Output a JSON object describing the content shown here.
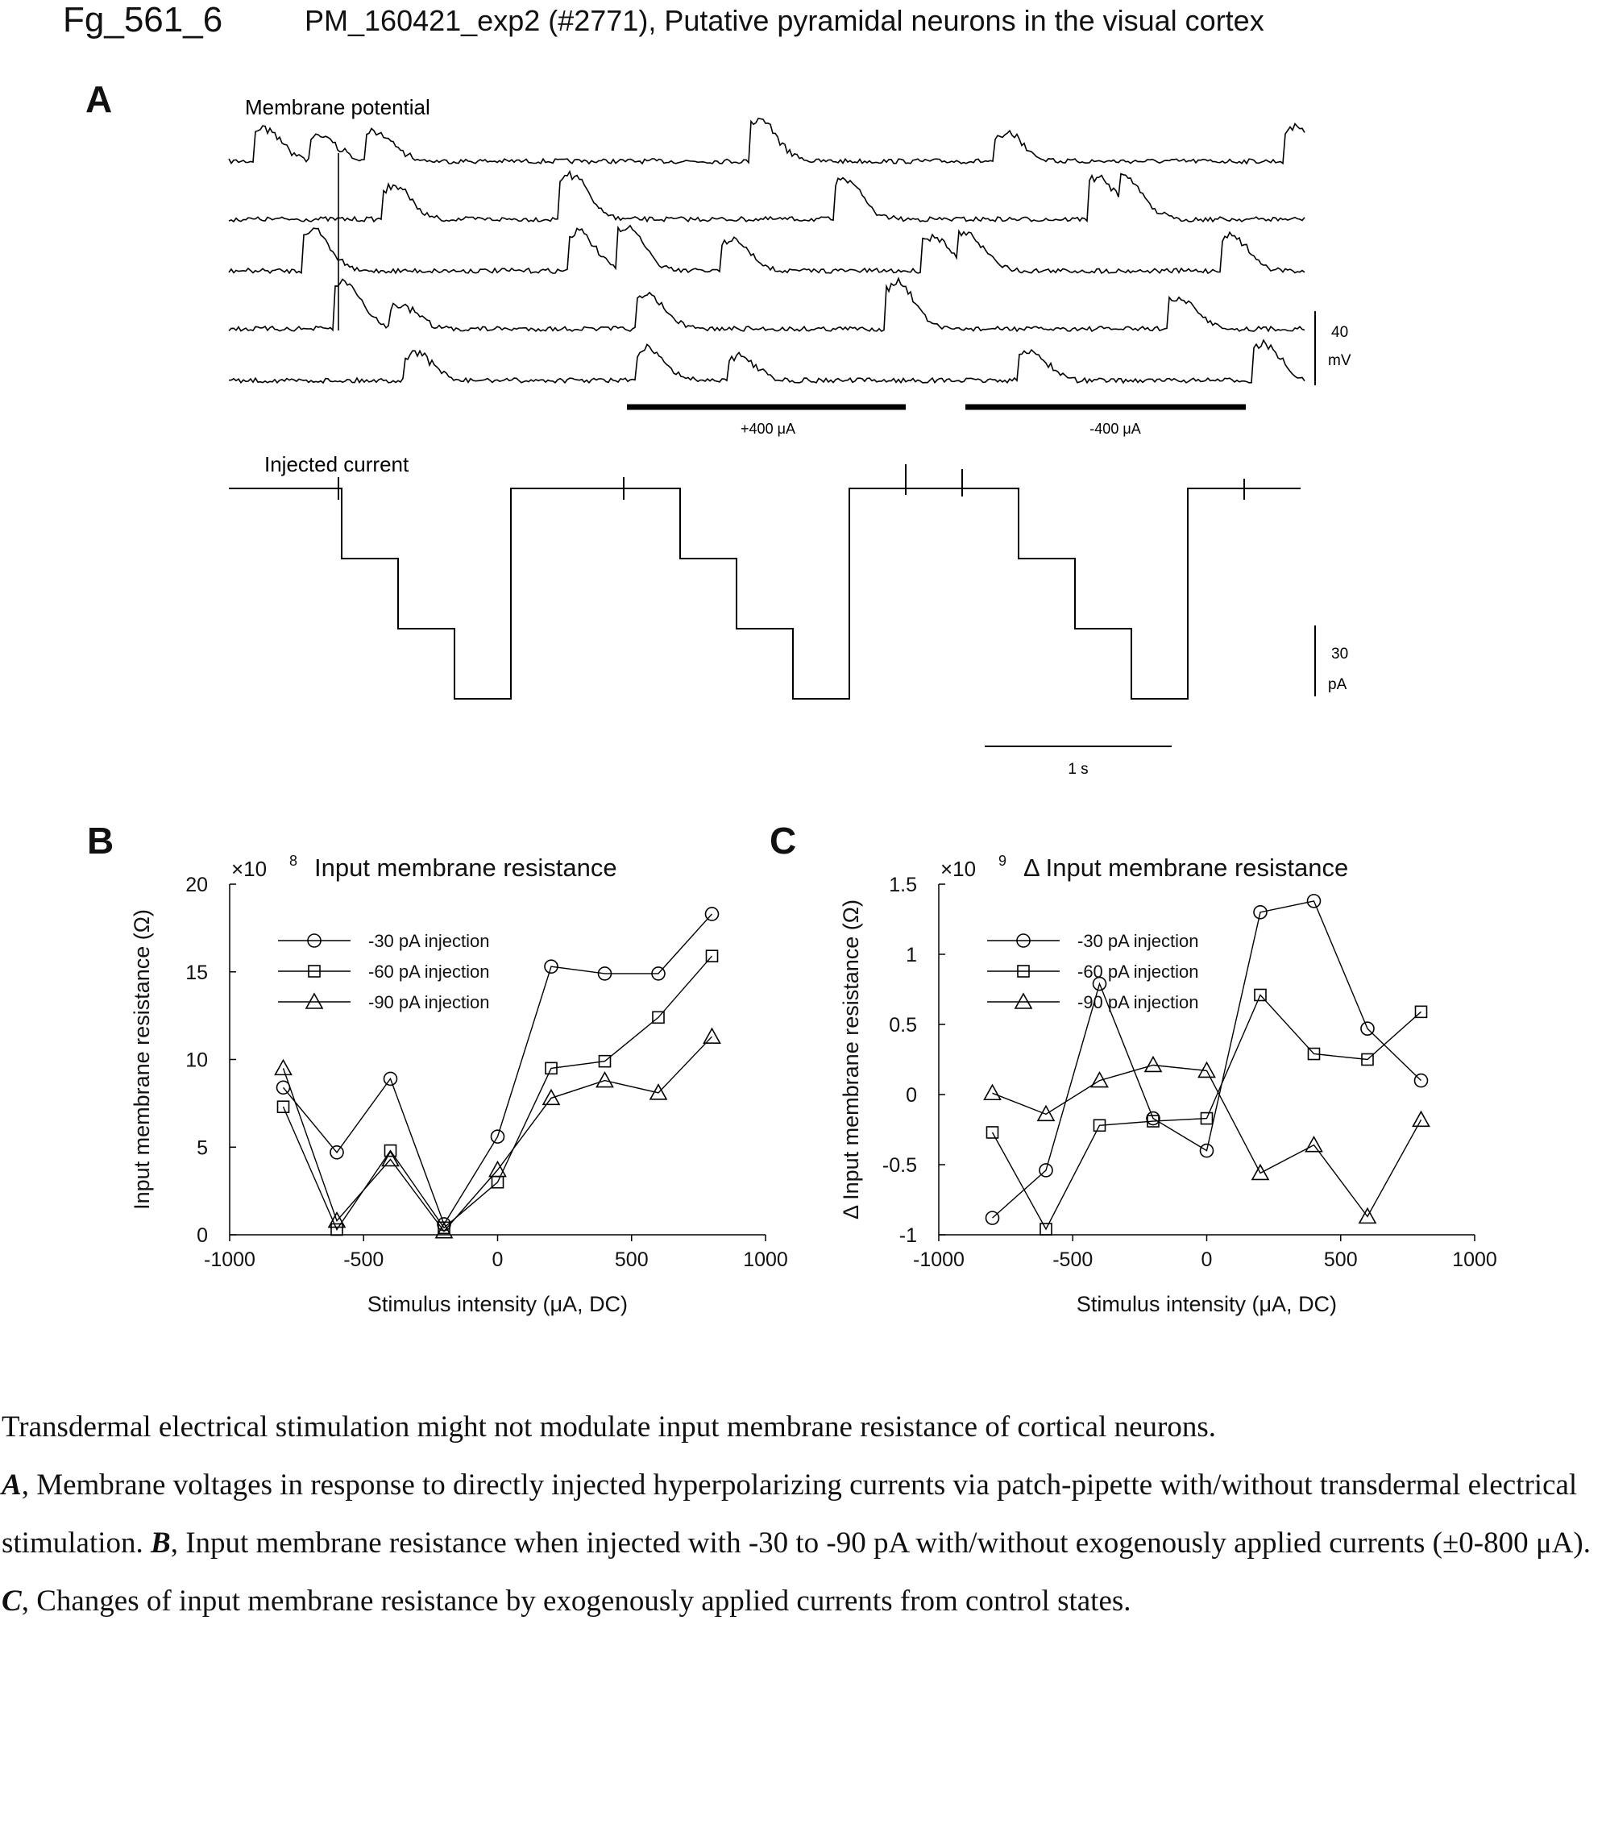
{
  "figure_id": "Fg_561_6",
  "figure_title": "PM_160421_exp2 (#2771), Putative pyramidal neurons in the visual cortex",
  "panels": {
    "a": "A",
    "b": "B",
    "c": "C"
  },
  "panel_a": {
    "membrane_label": "Membrane potential",
    "current_label": "Injected current",
    "stim_pos_label": "+400 μA",
    "stim_neg_label": "-400 μA",
    "scale_v_value": "40",
    "scale_v_unit": "mV",
    "scale_i_value": "30",
    "scale_i_unit": "pA",
    "scale_t_label": "1 s"
  },
  "chart_data": [
    {
      "type": "line",
      "panel": "B",
      "title": "Input membrane resistance",
      "multiplier_label": "×10",
      "multiplier_exp": "8",
      "xlabel": "Stimulus intensity (μA, DC)",
      "ylabel": "Input membrane resistance (Ω)",
      "xlim": [
        -1000,
        1000
      ],
      "ylim": [
        0,
        20
      ],
      "xticks": [
        -1000,
        -500,
        0,
        500,
        1000
      ],
      "yticks": [
        0,
        5,
        10,
        15,
        20
      ],
      "legend_position": "top-left",
      "x": [
        -800,
        -600,
        -400,
        -200,
        0,
        200,
        400,
        600,
        800
      ],
      "series": [
        {
          "name": "-30 pA injection",
          "marker": "circle",
          "values": [
            8.4,
            4.7,
            8.9,
            0.6,
            5.6,
            15.3,
            14.9,
            14.9,
            18.3
          ]
        },
        {
          "name": "-60 pA injection",
          "marker": "square",
          "values": [
            7.3,
            0.3,
            4.8,
            0.4,
            3.0,
            9.5,
            9.9,
            12.4,
            15.9
          ]
        },
        {
          "name": "-90 pA injection",
          "marker": "triangle",
          "values": [
            9.5,
            0.8,
            4.3,
            0.2,
            3.7,
            7.8,
            8.8,
            8.1,
            11.3
          ]
        }
      ]
    },
    {
      "type": "line",
      "panel": "C",
      "title": "Δ Input membrane resistance",
      "multiplier_label": "×10",
      "multiplier_exp": "9",
      "xlabel": "Stimulus intensity (μA, DC)",
      "ylabel": "Δ Input membrane resistance (Ω)",
      "xlim": [
        -1000,
        1000
      ],
      "ylim": [
        -1,
        1.5
      ],
      "xticks": [
        -1000,
        -500,
        0,
        500,
        1000
      ],
      "yticks": [
        -1,
        -0.5,
        0,
        0.5,
        1,
        1.5
      ],
      "legend_position": "top-left",
      "x": [
        -800,
        -600,
        -400,
        -200,
        0,
        200,
        400,
        600,
        800
      ],
      "series": [
        {
          "name": "-30 pA injection",
          "marker": "circle",
          "values": [
            -0.88,
            -0.54,
            0.79,
            -0.17,
            -0.4,
            1.3,
            1.38,
            0.47,
            0.1
          ]
        },
        {
          "name": "-60 pA injection",
          "marker": "square",
          "values": [
            -0.27,
            -0.96,
            -0.22,
            -0.19,
            -0.17,
            0.71,
            0.29,
            0.25,
            0.59
          ]
        },
        {
          "name": "-90 pA injection",
          "marker": "triangle",
          "values": [
            0.01,
            -0.14,
            0.1,
            0.21,
            0.17,
            -0.56,
            -0.36,
            -0.87,
            -0.18
          ]
        }
      ]
    }
  ],
  "caption": {
    "line1": "Transdermal electrical stimulation might not modulate input membrane resistance of cortical neurons.",
    "a_label": "A",
    "a_text": ", Membrane voltages in response to directly injected hyperpolarizing currents via patch-pipette with/without transdermal electrical stimulation. ",
    "b_label": "B",
    "b_text": ", Input membrane resistance when injected with -30 to -90 pA with/without exogenously applied currents (±0-800 μA). ",
    "c_label": "C",
    "c_text": ", Changes of input membrane resistance by exogenously applied currents from control states."
  }
}
